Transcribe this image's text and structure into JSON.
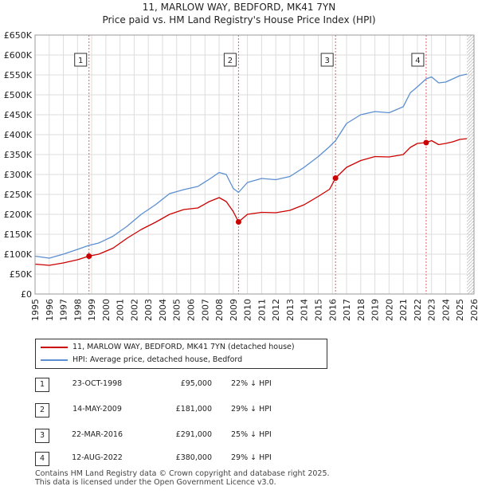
{
  "title": "11, MARLOW WAY, BEDFORD, MK41 7YN",
  "subtitle": "Price paid vs. HM Land Registry's House Price Index (HPI)",
  "chart_data": {
    "type": "line",
    "xlim": [
      1995,
      2026
    ],
    "ylim": [
      0,
      650000
    ],
    "x_ticks": [
      1995,
      1996,
      1997,
      1998,
      1999,
      2000,
      2001,
      2002,
      2003,
      2004,
      2005,
      2006,
      2007,
      2008,
      2009,
      2010,
      2011,
      2012,
      2013,
      2014,
      2015,
      2016,
      2017,
      2018,
      2019,
      2020,
      2021,
      2022,
      2023,
      2024,
      2025,
      2026
    ],
    "y_ticks": [
      {
        "value": 0,
        "label": "£0"
      },
      {
        "value": 50000,
        "label": "£50K"
      },
      {
        "value": 100000,
        "label": "£100K"
      },
      {
        "value": 150000,
        "label": "£150K"
      },
      {
        "value": 200000,
        "label": "£200K"
      },
      {
        "value": 250000,
        "label": "£250K"
      },
      {
        "value": 300000,
        "label": "£300K"
      },
      {
        "value": 350000,
        "label": "£350K"
      },
      {
        "value": 400000,
        "label": "£400K"
      },
      {
        "value": 450000,
        "label": "£450K"
      },
      {
        "value": 500000,
        "label": "£500K"
      },
      {
        "value": 550000,
        "label": "£550K"
      },
      {
        "value": 600000,
        "label": "£600K"
      },
      {
        "value": 650000,
        "label": "£650K"
      }
    ],
    "grid": true,
    "data_end_year": 2025.5,
    "series": [
      {
        "name": "11, MARLOW WAY, BEDFORD, MK41 7YN (detached house)",
        "color": "#cc0000",
        "points": [
          [
            1995.0,
            75000
          ],
          [
            1996.0,
            72000
          ],
          [
            1997.0,
            78000
          ],
          [
            1998.0,
            86000
          ],
          [
            1998.8,
            95000
          ],
          [
            1999.5,
            100000
          ],
          [
            2000.5,
            115000
          ],
          [
            2001.5,
            140000
          ],
          [
            2002.5,
            162000
          ],
          [
            2003.5,
            180000
          ],
          [
            2004.5,
            200000
          ],
          [
            2005.5,
            212000
          ],
          [
            2006.5,
            216000
          ],
          [
            2007.3,
            232000
          ],
          [
            2008.0,
            242000
          ],
          [
            2008.5,
            232000
          ],
          [
            2009.0,
            207000
          ],
          [
            2009.37,
            181000
          ],
          [
            2010.0,
            200000
          ],
          [
            2011.0,
            205000
          ],
          [
            2012.0,
            204000
          ],
          [
            2013.0,
            210000
          ],
          [
            2014.0,
            224000
          ],
          [
            2015.0,
            245000
          ],
          [
            2015.8,
            263000
          ],
          [
            2016.22,
            291000
          ],
          [
            2017.0,
            318000
          ],
          [
            2018.0,
            335000
          ],
          [
            2019.0,
            345000
          ],
          [
            2020.0,
            344000
          ],
          [
            2021.0,
            350000
          ],
          [
            2021.5,
            368000
          ],
          [
            2022.0,
            378000
          ],
          [
            2022.62,
            380000
          ],
          [
            2023.0,
            385000
          ],
          [
            2023.5,
            375000
          ],
          [
            2024.0,
            378000
          ],
          [
            2024.5,
            382000
          ],
          [
            2025.0,
            388000
          ],
          [
            2025.5,
            390000
          ]
        ]
      },
      {
        "name": "HPI: Average price, detached house, Bedford",
        "color": "#5b8fd1",
        "points": [
          [
            1995.0,
            95000
          ],
          [
            1996.0,
            90000
          ],
          [
            1997.0,
            100000
          ],
          [
            1998.0,
            112000
          ],
          [
            1998.8,
            122000
          ],
          [
            1999.5,
            128000
          ],
          [
            2000.5,
            145000
          ],
          [
            2001.5,
            170000
          ],
          [
            2002.5,
            200000
          ],
          [
            2003.5,
            224000
          ],
          [
            2004.5,
            252000
          ],
          [
            2005.5,
            262000
          ],
          [
            2006.5,
            270000
          ],
          [
            2007.3,
            288000
          ],
          [
            2008.0,
            305000
          ],
          [
            2008.5,
            300000
          ],
          [
            2009.0,
            265000
          ],
          [
            2009.37,
            255000
          ],
          [
            2010.0,
            280000
          ],
          [
            2011.0,
            290000
          ],
          [
            2012.0,
            287000
          ],
          [
            2013.0,
            295000
          ],
          [
            2014.0,
            318000
          ],
          [
            2015.0,
            345000
          ],
          [
            2015.8,
            370000
          ],
          [
            2016.22,
            385000
          ],
          [
            2017.0,
            428000
          ],
          [
            2018.0,
            450000
          ],
          [
            2019.0,
            458000
          ],
          [
            2020.0,
            455000
          ],
          [
            2021.0,
            470000
          ],
          [
            2021.5,
            505000
          ],
          [
            2022.0,
            520000
          ],
          [
            2022.62,
            540000
          ],
          [
            2023.0,
            545000
          ],
          [
            2023.5,
            530000
          ],
          [
            2024.0,
            532000
          ],
          [
            2024.5,
            540000
          ],
          [
            2025.0,
            548000
          ],
          [
            2025.5,
            552000
          ]
        ]
      }
    ],
    "sales": [
      {
        "label": "1",
        "year": 1998.81,
        "price": 95000,
        "date": "23-OCT-1998",
        "price_text": "£95,000",
        "hpi_text": "22% ↓ HPI"
      },
      {
        "label": "2",
        "year": 2009.37,
        "price": 181000,
        "date": "14-MAY-2009",
        "price_text": "£181,000",
        "hpi_text": "29% ↓ HPI"
      },
      {
        "label": "3",
        "year": 2016.22,
        "price": 291000,
        "date": "22-MAR-2016",
        "price_text": "£291,000",
        "hpi_text": "25% ↓ HPI"
      },
      {
        "label": "4",
        "year": 2022.62,
        "price": 380000,
        "date": "12-AUG-2022",
        "price_text": "£380,000",
        "hpi_text": "29% ↓ HPI"
      }
    ]
  },
  "legend": {
    "red_label": "11, MARLOW WAY, BEDFORD, MK41 7YN (detached house)",
    "blue_label": "HPI: Average price, detached house, Bedford",
    "red_color": "#cc0000",
    "blue_color": "#5b8fd1"
  },
  "footer": {
    "line1": "Contains HM Land Registry data © Crown copyright and database right 2025.",
    "line2": "This data is licensed under the Open Government Licence v3.0."
  }
}
